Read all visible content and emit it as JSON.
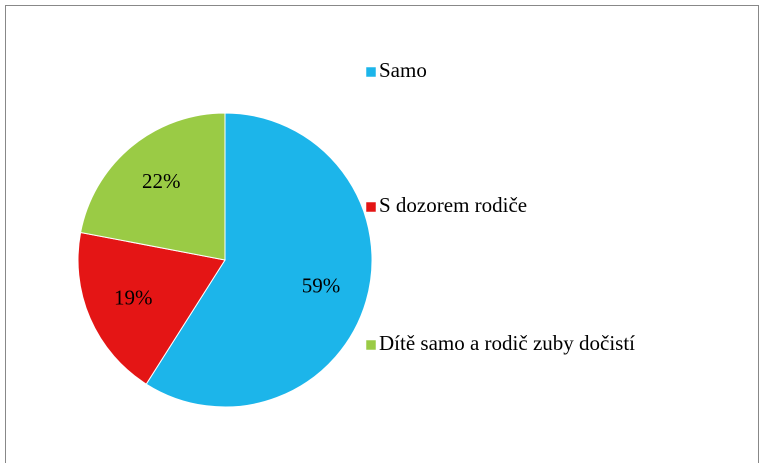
{
  "chart_data": {
    "type": "pie",
    "categories": [
      "Samo",
      "S dozorem rodiče",
      "Dítě samo a rodič zuby dočistí"
    ],
    "values": [
      59,
      19,
      22
    ],
    "value_labels": [
      "59%",
      "19%",
      "22%"
    ],
    "colors": [
      "#1cb5ea",
      "#e41515",
      "#9acb45"
    ],
    "legend": "right"
  }
}
